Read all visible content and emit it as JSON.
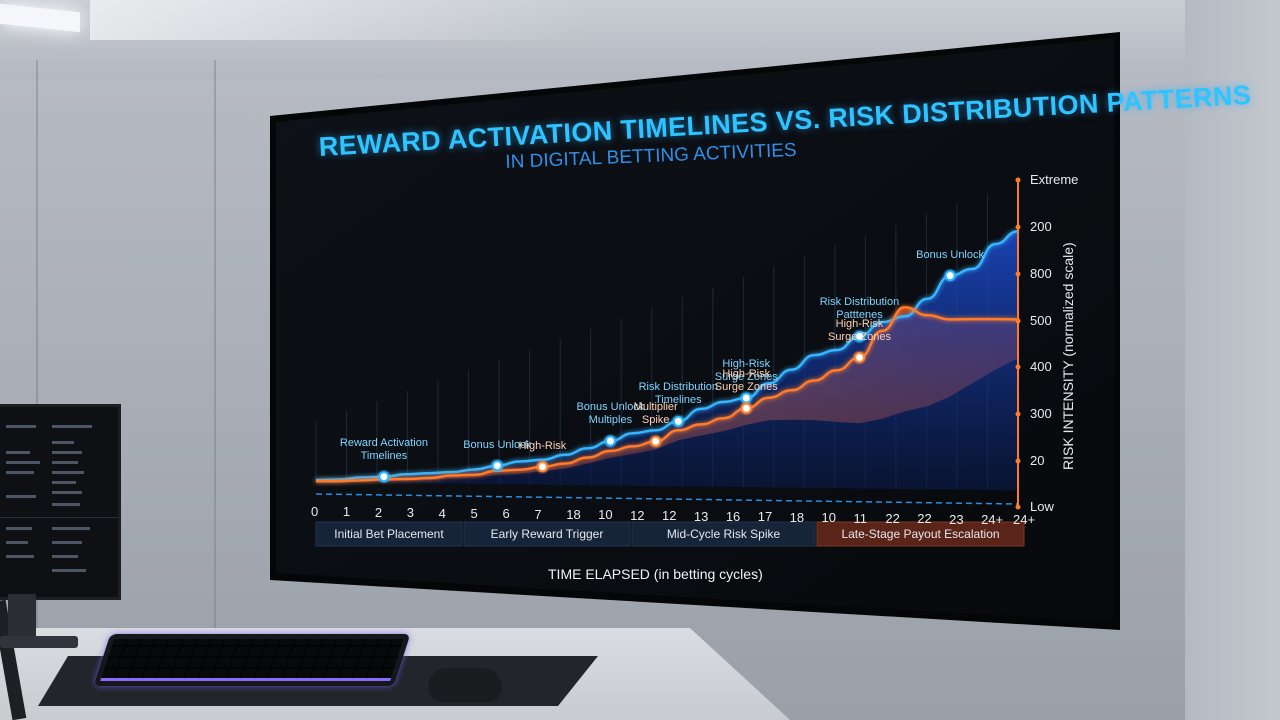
{
  "chart_data": {
    "type": "area",
    "title": "REWARD ACTIVATION TIMELINES VS. RISK DISTRIBUTION PATTERNS",
    "subtitle": "IN DIGITAL BETTING ACTIVITIES",
    "xlabel": "TIME ELAPSED (in betting cycles)",
    "ylabel": "RISK INTENSITY (normalized scale)",
    "x_ticks": [
      "0",
      "1",
      "2",
      "3",
      "4",
      "5",
      "6",
      "7",
      "18",
      "10",
      "12",
      "12",
      "13",
      "16",
      "17",
      "18",
      "10",
      "11",
      "22",
      "22",
      "23",
      "24+",
      "24+"
    ],
    "y_ticks": [
      "Low",
      "20",
      "300",
      "400",
      "500",
      "800",
      "200",
      "Extreme"
    ],
    "phases": [
      "Initial Bet Placement",
      "Early Reward Trigger",
      "Mid-Cycle Risk Spike",
      "Late-Stage Payout Escalation"
    ],
    "colors": {
      "reward": "#1e8fff",
      "risk": "#ff6a1e",
      "phase_highlight": "#7a2e1e"
    },
    "grid": true,
    "series": [
      {
        "name": "reward",
        "color": "#1e8fff",
        "values": [
          10,
          10,
          14,
          14,
          17,
          17,
          17,
          19,
          22,
          25,
          25,
          28,
          32,
          36,
          40,
          40,
          44,
          50,
          52,
          52,
          58,
          63,
          68,
          68,
          72,
          76,
          76,
          81,
          88,
          88,
          95,
          97
        ],
        "annotations": [
          {
            "label": "Reward Activation Timelines",
            "lines": [
              "Reward Activation",
              "Timelines"
            ]
          },
          {
            "label": "Bonus Unlock",
            "lines": [
              "Bonus Unlock"
            ]
          },
          {
            "label": "Bonus Unlock Multiplies",
            "lines": [
              "Bonus Unlock",
              "Multiples"
            ]
          },
          {
            "label": "Risk Distribution Timelines",
            "lines": [
              "Risk Distribution",
              "Timelines"
            ]
          },
          {
            "label": "High-Risk Surge Zones",
            "lines": [
              "High-Risk",
              "Surge Zones"
            ]
          },
          {
            "label": "Risk Distribution Patterns",
            "lines": [
              "Risk Distribution",
              "Patttenes"
            ]
          },
          {
            "label": "Bonus Unlock",
            "lines": [
              "Bonus Unlock"
            ]
          }
        ]
      },
      {
        "name": "risk",
        "color": "#ff6a1e",
        "values": [
          4,
          4,
          6,
          8,
          8,
          9,
          12,
          12,
          16,
          16,
          18,
          20,
          24,
          28,
          30,
          32,
          38,
          40,
          42,
          46,
          50,
          52,
          55,
          58,
          62,
          72,
          80,
          74,
          70,
          68,
          66,
          64
        ],
        "annotations": [
          {
            "label": "High-Risk",
            "lines": [
              "High-Risk"
            ]
          },
          {
            "label": "Multiplier Spike",
            "lines": [
              "Multiplier",
              "Spike"
            ]
          },
          {
            "label": "High-Risk Surge Zones",
            "lines": [
              "High-Risk",
              "Surge Zones"
            ]
          },
          {
            "label": "High-Risk Surge Zones",
            "lines": [
              "High-Risk",
              "Surge Zones"
            ]
          }
        ]
      }
    ]
  }
}
